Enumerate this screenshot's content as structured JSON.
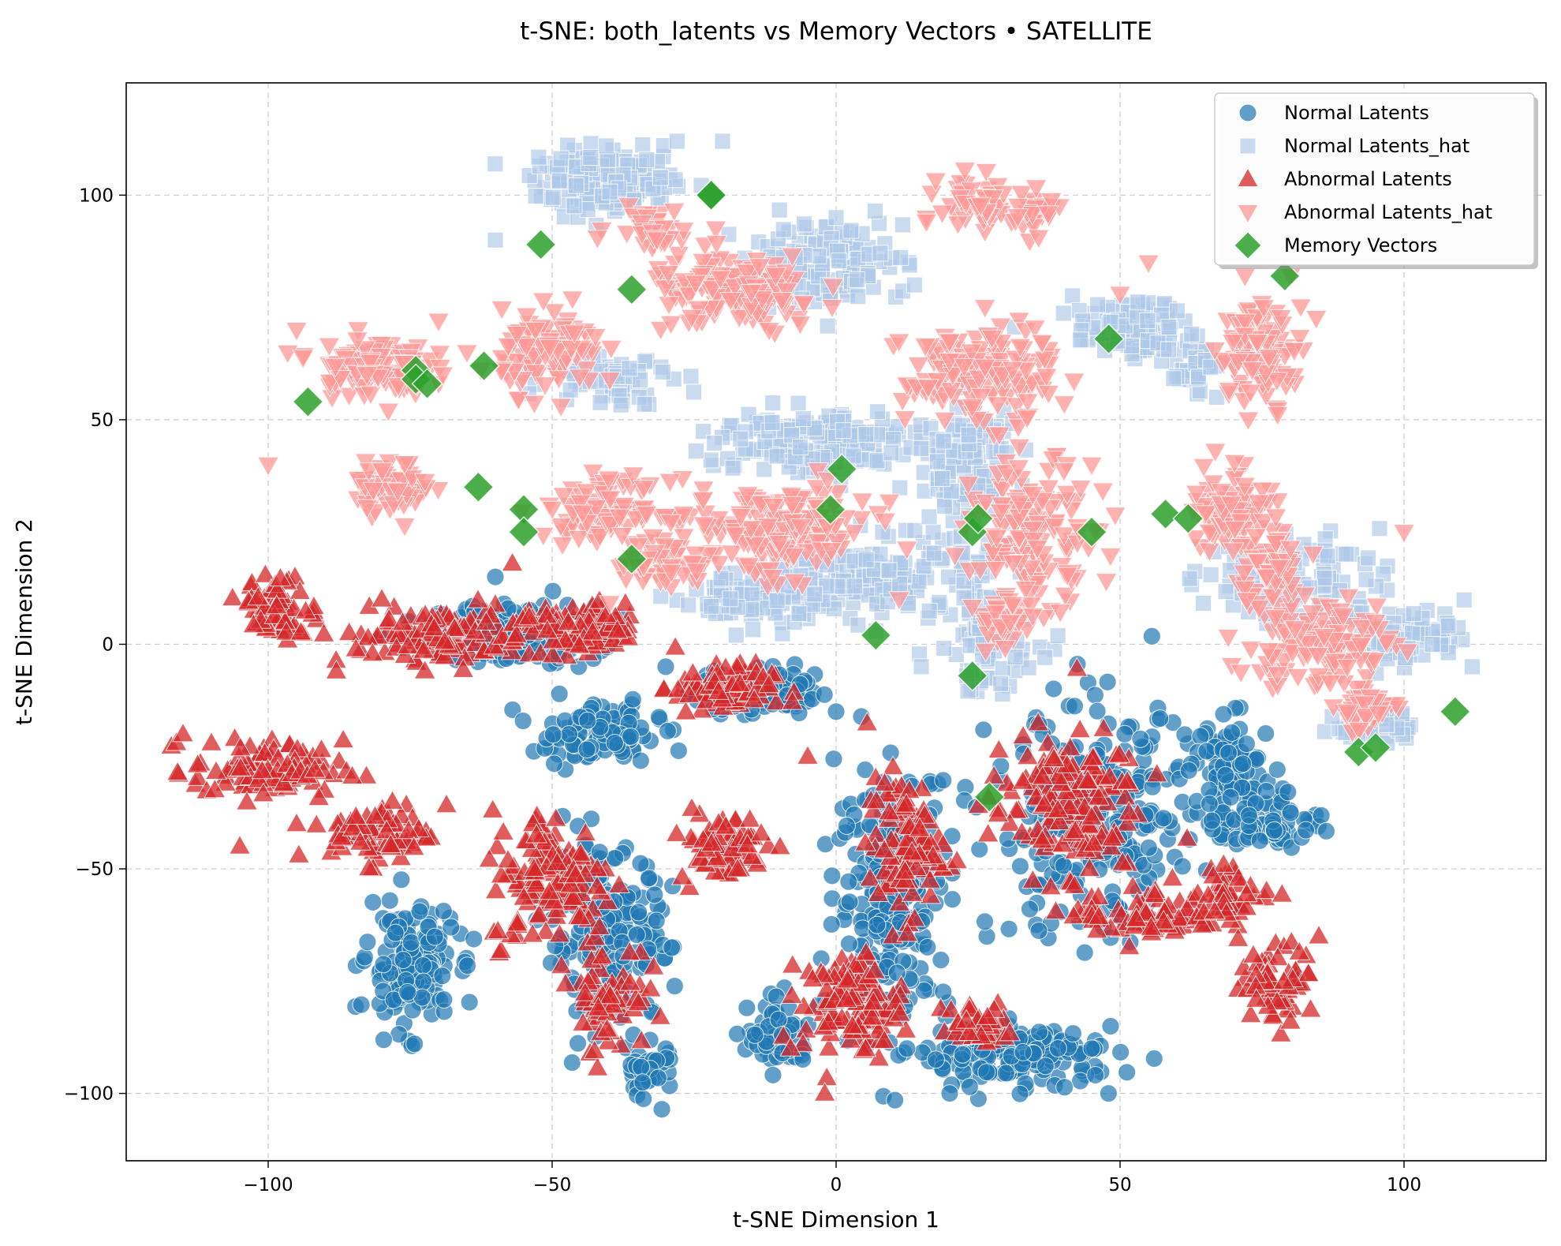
{
  "chart_data": {
    "type": "scatter",
    "title": "t-SNE: both_latents vs Memory Vectors • SATELLITE",
    "xlabel": "t-SNE Dimension 1",
    "ylabel": "t-SNE Dimension 2",
    "xlim": [
      -125,
      125
    ],
    "ylim": [
      -115,
      125
    ],
    "xticks": [
      -100,
      -50,
      0,
      50,
      100
    ],
    "yticks": [
      -100,
      -50,
      0,
      50,
      100
    ],
    "xtick_labels": [
      "−100",
      "−50",
      "0",
      "50",
      "100"
    ],
    "ytick_labels": [
      "−100",
      "−50",
      "0",
      "50",
      "100"
    ],
    "grid": true,
    "legend_position": "top-right",
    "series": [
      {
        "name": "Normal Latents",
        "marker": "circle",
        "color": "#1f77b4",
        "clusters": [
          {
            "center": [
              -57,
              2
            ],
            "spread": [
              13,
              6
            ],
            "n": 140
          },
          {
            "center": [
              -15,
              -10
            ],
            "spread": [
              10,
              5
            ],
            "n": 110
          },
          {
            "center": [
              -42,
              -20
            ],
            "spread": [
              10,
              6
            ],
            "n": 110
          },
          {
            "center": [
              -75,
              -72
            ],
            "spread": [
              7,
              12
            ],
            "n": 160
          },
          {
            "center": [
              -40,
              -65
            ],
            "spread": [
              10,
              17
            ],
            "n": 170
          },
          {
            "center": [
              -33,
              -95
            ],
            "spread": [
              4,
              6
            ],
            "n": 40
          },
          {
            "center": [
              10,
              -55
            ],
            "spread": [
              9,
              25
            ],
            "n": 230
          },
          {
            "center": [
              -10,
              -87
            ],
            "spread": [
              5,
              7
            ],
            "n": 70
          },
          {
            "center": [
              32,
              -92
            ],
            "spread": [
              16,
              6
            ],
            "n": 150
          },
          {
            "center": [
              45,
              -40
            ],
            "spread": [
              16,
              23
            ],
            "n": 270
          },
          {
            "center": [
              70,
              -30
            ],
            "spread": [
              7,
              12
            ],
            "n": 110
          },
          {
            "center": [
              78,
              -40
            ],
            "spread": [
              7,
              5
            ],
            "n": 50
          }
        ],
        "points": [
          [
            -60,
            15
          ],
          [
            -45,
            0
          ],
          [
            -30,
            -5
          ],
          [
            0,
            -15
          ],
          [
            20,
            -100
          ],
          [
            45,
            -90
          ]
        ]
      },
      {
        "name": "Normal Latents_hat",
        "marker": "square",
        "color": "#aec7e8",
        "clusters": [
          {
            "center": [
              -40,
              103
            ],
            "spread": [
              12,
              6
            ],
            "n": 160
          },
          {
            "center": [
              -2,
              85
            ],
            "spread": [
              13,
              9
            ],
            "n": 120
          },
          {
            "center": [
              -40,
              60
            ],
            "spread": [
              10,
              6
            ],
            "n": 60
          },
          {
            "center": [
              -5,
              45
            ],
            "spread": [
              17,
              7
            ],
            "n": 150
          },
          {
            "center": [
              10,
              15
            ],
            "spread": [
              16,
              8
            ],
            "n": 170
          },
          {
            "center": [
              -15,
              10
            ],
            "spread": [
              12,
              6
            ],
            "n": 90
          },
          {
            "center": [
              23,
              40
            ],
            "spread": [
              8,
              13
            ],
            "n": 110
          },
          {
            "center": [
              27,
              0
            ],
            "spread": [
              8,
              10
            ],
            "n": 90
          },
          {
            "center": [
              52,
              70
            ],
            "spread": [
              9,
              6
            ],
            "n": 100
          },
          {
            "center": [
              63,
              62
            ],
            "spread": [
              3,
              5
            ],
            "n": 30
          },
          {
            "center": [
              80,
              15
            ],
            "spread": [
              14,
              9
            ],
            "n": 100
          },
          {
            "center": [
              100,
              2
            ],
            "spread": [
              10,
              6
            ],
            "n": 80
          },
          {
            "center": [
              95,
              -18
            ],
            "spread": [
              6,
              4
            ],
            "n": 40
          }
        ],
        "points": [
          [
            -28,
            112
          ],
          [
            -20,
            112
          ],
          [
            -60,
            90
          ],
          [
            0,
            95
          ],
          [
            23,
            -7
          ],
          [
            15,
            -5
          ],
          [
            67,
            55
          ],
          [
            105,
            0
          ],
          [
            112,
            -5
          ]
        ]
      },
      {
        "name": "Abnormal Latents",
        "marker": "triangle-up",
        "color": "#d62728",
        "clusters": [
          {
            "center": [
              -98,
              8
            ],
            "spread": [
              6,
              6
            ],
            "n": 70
          },
          {
            "center": [
              -70,
              2
            ],
            "spread": [
              15,
              6
            ],
            "n": 110
          },
          {
            "center": [
              -45,
              3
            ],
            "spread": [
              10,
              5
            ],
            "n": 110
          },
          {
            "center": [
              -20,
              -10
            ],
            "spread": [
              8,
              5
            ],
            "n": 80
          },
          {
            "center": [
              -100,
              -28
            ],
            "spread": [
              12,
              6
            ],
            "n": 90
          },
          {
            "center": [
              -80,
              -42
            ],
            "spread": [
              8,
              6
            ],
            "n": 70
          },
          {
            "center": [
              -50,
              -52
            ],
            "spread": [
              10,
              14
            ],
            "n": 130
          },
          {
            "center": [
              -40,
              -78
            ],
            "spread": [
              6,
              11
            ],
            "n": 60
          },
          {
            "center": [
              -20,
              -45
            ],
            "spread": [
              7,
              7
            ],
            "n": 70
          },
          {
            "center": [
              3,
              -80
            ],
            "spread": [
              8,
              10
            ],
            "n": 110
          },
          {
            "center": [
              12,
              -45
            ],
            "spread": [
              6,
              14
            ],
            "n": 90
          },
          {
            "center": [
              40,
              -35
            ],
            "spread": [
              12,
              15
            ],
            "n": 150
          },
          {
            "center": [
              55,
              -60
            ],
            "spread": [
              12,
              6
            ],
            "n": 80
          },
          {
            "center": [
              78,
              -75
            ],
            "spread": [
              6,
              7
            ],
            "n": 60
          },
          {
            "center": [
              70,
              -55
            ],
            "spread": [
              6,
              5
            ],
            "n": 40
          },
          {
            "center": [
              25,
              -85
            ],
            "spread": [
              6,
              5
            ],
            "n": 40
          }
        ],
        "points": [
          [
            -115,
            -20
          ],
          [
            -110,
            -22
          ],
          [
            -105,
            -45
          ],
          [
            -95,
            -40
          ],
          [
            -80,
            10
          ],
          [
            -88,
            -6
          ],
          [
            -57,
            18
          ],
          [
            -5,
            -25
          ],
          [
            -8,
            -90
          ],
          [
            -2,
            -100
          ],
          [
            85,
            -65
          ],
          [
            80,
            -84
          ]
        ]
      },
      {
        "name": "Abnormal Latents_hat",
        "marker": "triangle-down",
        "color": "#ff9896",
        "clusters": [
          {
            "center": [
              -82,
              62
            ],
            "spread": [
              9,
              6
            ],
            "n": 110
          },
          {
            "center": [
              -78,
              35
            ],
            "spread": [
              6,
              5
            ],
            "n": 70
          },
          {
            "center": [
              -50,
              65
            ],
            "spread": [
              8,
              8
            ],
            "n": 110
          },
          {
            "center": [
              -18,
              78
            ],
            "spread": [
              14,
              8
            ],
            "n": 140
          },
          {
            "center": [
              -33,
              93
            ],
            "spread": [
              6,
              4
            ],
            "n": 40
          },
          {
            "center": [
              -40,
              30
            ],
            "spread": [
              10,
              6
            ],
            "n": 100
          },
          {
            "center": [
              -10,
              25
            ],
            "spread": [
              15,
              9
            ],
            "n": 160
          },
          {
            "center": [
              -30,
              18
            ],
            "spread": [
              8,
              6
            ],
            "n": 50
          },
          {
            "center": [
              25,
              98
            ],
            "spread": [
              6,
              6
            ],
            "n": 50
          },
          {
            "center": [
              35,
              96
            ],
            "spread": [
              4,
              4
            ],
            "n": 30
          },
          {
            "center": [
              25,
              60
            ],
            "spread": [
              12,
              10
            ],
            "n": 150
          },
          {
            "center": [
              35,
              25
            ],
            "spread": [
              10,
              14
            ],
            "n": 140
          },
          {
            "center": [
              30,
              5
            ],
            "spread": [
              5,
              5
            ],
            "n": 40
          },
          {
            "center": [
              75,
              65
            ],
            "spread": [
              7,
              10
            ],
            "n": 90
          },
          {
            "center": [
              70,
              30
            ],
            "spread": [
              7,
              10
            ],
            "n": 90
          },
          {
            "center": [
              85,
              0
            ],
            "spread": [
              12,
              10
            ],
            "n": 120
          },
          {
            "center": [
              93,
              -15
            ],
            "spread": [
              5,
              4
            ],
            "n": 40
          },
          {
            "center": [
              76,
              15
            ],
            "spread": [
              6,
              7
            ],
            "n": 50
          }
        ],
        "points": [
          [
            -95,
            70
          ],
          [
            -100,
            40
          ],
          [
            -70,
            72
          ],
          [
            -65,
            65
          ],
          [
            45,
            40
          ],
          [
            50,
            78
          ],
          [
            55,
            85
          ],
          [
            72,
            82
          ],
          [
            80,
            82
          ],
          [
            100,
            25
          ],
          [
            90,
            -5
          ],
          [
            95,
            5
          ]
        ]
      },
      {
        "name": "Memory Vectors",
        "marker": "diamond",
        "color": "#2ca02c",
        "points": [
          [
            -22,
            100
          ],
          [
            -22,
            100
          ],
          [
            -52,
            89
          ],
          [
            -36,
            79
          ],
          [
            -74,
            61
          ],
          [
            -74,
            59
          ],
          [
            -72,
            58
          ],
          [
            -62,
            62
          ],
          [
            -93,
            54
          ],
          [
            -63,
            35
          ],
          [
            -55,
            30
          ],
          [
            -55,
            25
          ],
          [
            -36,
            19
          ],
          [
            1,
            39
          ],
          [
            -1,
            30
          ],
          [
            7,
            2
          ],
          [
            24,
            25
          ],
          [
            25,
            28
          ],
          [
            45,
            25
          ],
          [
            48,
            68
          ],
          [
            58,
            29
          ],
          [
            62,
            28
          ],
          [
            79,
            82
          ],
          [
            24,
            -7
          ],
          [
            27,
            -34
          ],
          [
            92,
            -24
          ],
          [
            95,
            -23
          ],
          [
            109,
            -15
          ]
        ]
      }
    ]
  }
}
